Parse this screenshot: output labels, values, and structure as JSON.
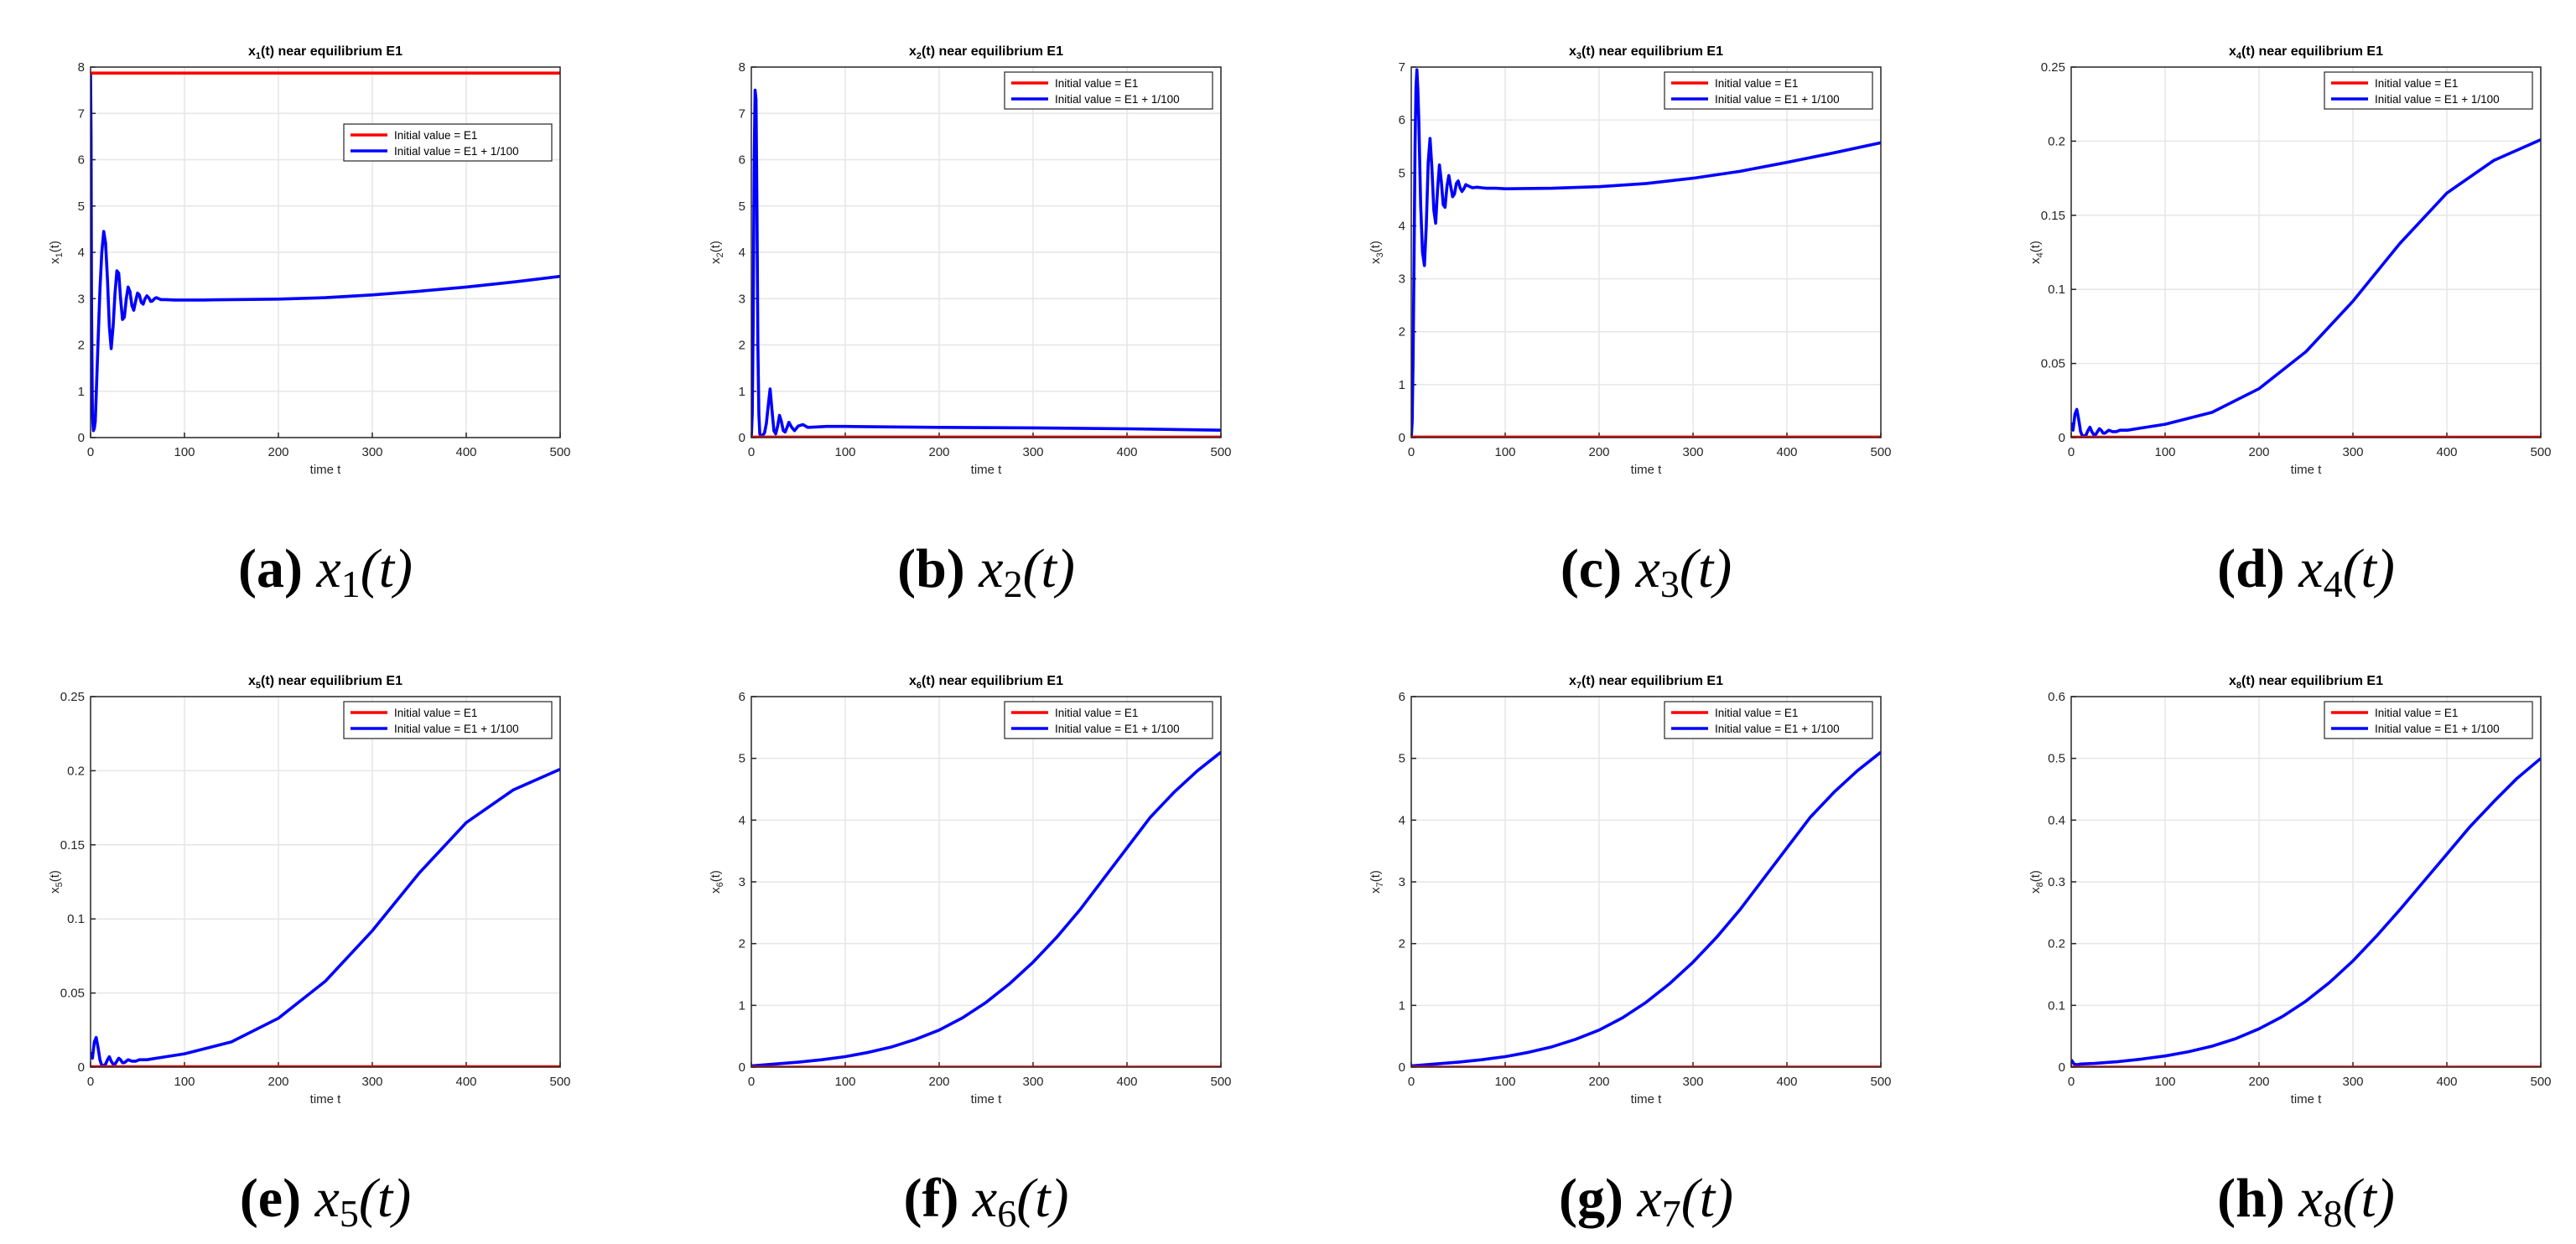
{
  "figure": {
    "panels": [
      {
        "label": "(a)",
        "var": "x",
        "sub": "1",
        "arg": "(t)"
      },
      {
        "label": "(b)",
        "var": "x",
        "sub": "2",
        "arg": "(t)"
      },
      {
        "label": "(c)",
        "var": "x",
        "sub": "3",
        "arg": "(t)"
      },
      {
        "label": "(d)",
        "var": "x",
        "sub": "4",
        "arg": "(t)"
      },
      {
        "label": "(e)",
        "var": "x",
        "sub": "5",
        "arg": "(t)"
      },
      {
        "label": "(f)",
        "var": "x",
        "sub": "6",
        "arg": "(t)"
      },
      {
        "label": "(g)",
        "var": "x",
        "sub": "7",
        "arg": "(t)"
      },
      {
        "label": "(h)",
        "var": "x",
        "sub": "8",
        "arg": "(t)"
      }
    ]
  },
  "colors": {
    "red": "#ff0000",
    "blue": "#0000ff",
    "grid": "#e6e6e6",
    "axis": "#262626"
  },
  "chart_data": [
    {
      "type": "line",
      "legend_position": "top-right",
      "grid": true,
      "title_pre": "x",
      "title_sub": "1",
      "title_post": "(t) near equilibrium E1",
      "ylabel_pre": "x",
      "ylabel_sub": "1",
      "ylabel_post": "(t)",
      "xlabel": "time t",
      "xlim": [
        0,
        500
      ],
      "ylim": [
        0,
        8
      ],
      "xticks": [
        "0",
        "100",
        "200",
        "300",
        "400",
        "500"
      ],
      "yticks": [
        "0",
        "1",
        "2",
        "3",
        "4",
        "5",
        "6",
        "7",
        "8"
      ],
      "series": [
        {
          "name": "Initial value = E1",
          "color": "#ff0000",
          "x": [
            0,
            500
          ],
          "y": [
            7.87,
            7.87
          ]
        },
        {
          "name": "Initial value = E1 + 1/100",
          "color": "#0000ff",
          "x": [
            0,
            0.5,
            1,
            2,
            3,
            4,
            5,
            6,
            8,
            10,
            12,
            14,
            16,
            18,
            20,
            22,
            24,
            26,
            28,
            30,
            32,
            34,
            36,
            38,
            40,
            42,
            44,
            46,
            48,
            50,
            52,
            54,
            56,
            58,
            60,
            62,
            64,
            66,
            68,
            70,
            75,
            80,
            90,
            100,
            120,
            150,
            200,
            250,
            300,
            350,
            400,
            450,
            500
          ],
          "y": [
            7.9,
            6.5,
            3.0,
            0.5,
            0.15,
            0.2,
            0.35,
            0.9,
            2.1,
            3.2,
            4.0,
            4.45,
            4.2,
            3.4,
            2.4,
            1.92,
            2.4,
            3.1,
            3.6,
            3.55,
            3.0,
            2.55,
            2.6,
            3.0,
            3.25,
            3.15,
            2.85,
            2.75,
            2.95,
            3.12,
            3.08,
            2.92,
            2.88,
            3.0,
            3.06,
            3.02,
            2.94,
            2.95,
            3.0,
            3.02,
            2.98,
            2.98,
            2.97,
            2.97,
            2.97,
            2.98,
            2.99,
            3.02,
            3.08,
            3.16,
            3.25,
            3.36,
            3.48
          ]
        }
      ]
    },
    {
      "type": "line",
      "legend_position": "top-right",
      "grid": true,
      "title_pre": "x",
      "title_sub": "2",
      "title_post": "(t) near equilibrium E1",
      "ylabel_pre": "x",
      "ylabel_sub": "2",
      "ylabel_post": "(t)",
      "xlabel": "time t",
      "xlim": [
        0,
        500
      ],
      "ylim": [
        0,
        8
      ],
      "xticks": [
        "0",
        "100",
        "200",
        "300",
        "400",
        "500"
      ],
      "yticks": [
        "0",
        "1",
        "2",
        "3",
        "4",
        "5",
        "6",
        "7",
        "8"
      ],
      "series": [
        {
          "name": "Initial value = E1",
          "color": "#ff0000",
          "x": [
            0,
            500
          ],
          "y": [
            0.01,
            0.01
          ]
        },
        {
          "name": "Initial value = E1 + 1/100",
          "color": "#0000ff",
          "x": [
            0,
            1,
            2,
            3,
            4,
            5,
            6,
            7,
            8,
            9,
            10,
            12,
            14,
            16,
            18,
            20,
            22,
            24,
            26,
            28,
            30,
            32,
            34,
            36,
            38,
            40,
            43,
            46,
            50,
            55,
            60,
            70,
            80,
            100,
            150,
            200,
            300,
            400,
            500
          ],
          "y": [
            0.02,
            0.5,
            2.5,
            6.0,
            7.5,
            7.3,
            5.0,
            2.0,
            0.5,
            0.08,
            0.03,
            0.05,
            0.1,
            0.3,
            0.7,
            1.05,
            0.6,
            0.15,
            0.08,
            0.25,
            0.48,
            0.35,
            0.15,
            0.12,
            0.22,
            0.33,
            0.22,
            0.15,
            0.25,
            0.28,
            0.22,
            0.23,
            0.24,
            0.24,
            0.23,
            0.22,
            0.21,
            0.19,
            0.16
          ]
        }
      ]
    },
    {
      "type": "line",
      "legend_position": "top-right",
      "grid": true,
      "title_pre": "x",
      "title_sub": "3",
      "title_post": "(t) near equilibrium E1",
      "ylabel_pre": "x",
      "ylabel_sub": "3",
      "ylabel_post": "(t)",
      "xlabel": "time t",
      "xlim": [
        0,
        500
      ],
      "ylim": [
        0,
        7
      ],
      "xticks": [
        "0",
        "100",
        "200",
        "300",
        "400",
        "500"
      ],
      "yticks": [
        "0",
        "1",
        "2",
        "3",
        "4",
        "5",
        "6",
        "7"
      ],
      "series": [
        {
          "name": "Initial value = E1",
          "color": "#ff0000",
          "x": [
            0,
            500
          ],
          "y": [
            0.01,
            0.01
          ]
        },
        {
          "name": "Initial value = E1 + 1/100",
          "color": "#0000ff",
          "x": [
            0,
            1,
            2,
            3,
            4,
            5,
            6,
            7,
            8,
            9,
            10,
            12,
            14,
            16,
            18,
            20,
            22,
            24,
            26,
            28,
            30,
            32,
            34,
            36,
            38,
            40,
            42,
            44,
            46,
            48,
            50,
            52,
            54,
            56,
            58,
            60,
            65,
            70,
            75,
            80,
            90,
            100,
            150,
            200,
            250,
            300,
            350,
            400,
            450,
            500
          ],
          "y": [
            0.0,
            0.3,
            1.5,
            3.5,
            5.5,
            6.6,
            6.95,
            6.6,
            6.0,
            5.2,
            4.4,
            3.5,
            3.25,
            4.0,
            5.2,
            5.65,
            5.1,
            4.3,
            4.05,
            4.7,
            5.15,
            4.85,
            4.4,
            4.35,
            4.75,
            4.95,
            4.75,
            4.55,
            4.6,
            4.8,
            4.85,
            4.72,
            4.65,
            4.7,
            4.78,
            4.76,
            4.72,
            4.73,
            4.72,
            4.71,
            4.71,
            4.7,
            4.71,
            4.74,
            4.8,
            4.9,
            5.03,
            5.2,
            5.38,
            5.57
          ]
        }
      ]
    },
    {
      "type": "line",
      "legend_position": "top-right",
      "grid": true,
      "title_pre": "x",
      "title_sub": "4",
      "title_post": "(t) near equilibrium E1",
      "ylabel_pre": "x",
      "ylabel_sub": "4",
      "ylabel_post": "(t)",
      "xlabel": "time t",
      "xlim": [
        0,
        500
      ],
      "ylim": [
        0,
        0.25
      ],
      "xticks": [
        "0",
        "100",
        "200",
        "300",
        "400",
        "500"
      ],
      "yticks": [
        "0",
        "0.05",
        "0.1",
        "0.15",
        "0.2",
        "0.25"
      ],
      "series": [
        {
          "name": "Initial value = E1",
          "color": "#ff0000",
          "x": [
            0,
            500
          ],
          "y": [
            0.0003,
            0.0003
          ]
        },
        {
          "name": "Initial value = E1 + 1/100",
          "color": "#0000ff",
          "x": [
            0,
            2,
            4,
            6,
            8,
            10,
            12,
            14,
            16,
            18,
            20,
            22,
            24,
            26,
            28,
            30,
            32,
            34,
            36,
            38,
            40,
            44,
            48,
            52,
            56,
            60,
            70,
            80,
            100,
            150,
            200,
            250,
            300,
            350,
            400,
            450,
            500
          ],
          "y": [
            0.01,
            0.005,
            0.016,
            0.019,
            0.012,
            0.004,
            0.001,
            0.001,
            0.002,
            0.005,
            0.007,
            0.004,
            0.002,
            0.002,
            0.004,
            0.006,
            0.005,
            0.003,
            0.003,
            0.004,
            0.005,
            0.004,
            0.004,
            0.005,
            0.005,
            0.005,
            0.006,
            0.007,
            0.009,
            0.017,
            0.033,
            0.058,
            0.092,
            0.131,
            0.165,
            0.187,
            0.201
          ]
        }
      ]
    },
    {
      "type": "line",
      "legend_position": "top-right",
      "grid": true,
      "title_pre": "x",
      "title_sub": "5",
      "title_post": "(t) near equilibrium E1",
      "ylabel_pre": "x",
      "ylabel_sub": "5",
      "ylabel_post": "(t)",
      "xlabel": "time t",
      "xlim": [
        0,
        500
      ],
      "ylim": [
        0,
        0.25
      ],
      "xticks": [
        "0",
        "100",
        "200",
        "300",
        "400",
        "500"
      ],
      "yticks": [
        "0",
        "0.05",
        "0.1",
        "0.15",
        "0.2",
        "0.25"
      ],
      "series": [
        {
          "name": "Initial value = E1",
          "color": "#ff0000",
          "x": [
            0,
            500
          ],
          "y": [
            0.0003,
            0.0003
          ]
        },
        {
          "name": "Initial value = E1 + 1/100",
          "color": "#0000ff",
          "x": [
            0,
            2,
            4,
            6,
            8,
            10,
            12,
            14,
            16,
            18,
            20,
            22,
            24,
            26,
            28,
            30,
            32,
            34,
            36,
            38,
            40,
            44,
            48,
            52,
            56,
            60,
            70,
            80,
            100,
            150,
            200,
            250,
            300,
            350,
            400,
            450,
            500
          ],
          "y": [
            0.01,
            0.006,
            0.017,
            0.02,
            0.013,
            0.005,
            0.001,
            0.001,
            0.002,
            0.005,
            0.007,
            0.004,
            0.002,
            0.002,
            0.004,
            0.006,
            0.005,
            0.003,
            0.003,
            0.004,
            0.005,
            0.004,
            0.004,
            0.005,
            0.005,
            0.005,
            0.006,
            0.007,
            0.009,
            0.017,
            0.033,
            0.058,
            0.092,
            0.131,
            0.165,
            0.187,
            0.201
          ]
        }
      ]
    },
    {
      "type": "line",
      "legend_position": "top-right",
      "grid": true,
      "title_pre": "x",
      "title_sub": "6",
      "title_post": "(t) near equilibrium E1",
      "ylabel_pre": "x",
      "ylabel_sub": "6",
      "ylabel_post": "(t)",
      "xlabel": "time t",
      "xlim": [
        0,
        500
      ],
      "ylim": [
        0,
        6
      ],
      "xticks": [
        "0",
        "100",
        "200",
        "300",
        "400",
        "500"
      ],
      "yticks": [
        "0",
        "1",
        "2",
        "3",
        "4",
        "5",
        "6"
      ],
      "series": [
        {
          "name": "Initial value = E1",
          "color": "#ff0000",
          "x": [
            0,
            500
          ],
          "y": [
            0.0,
            0.0
          ]
        },
        {
          "name": "Initial value = E1 + 1/100",
          "color": "#0000ff",
          "x": [
            0,
            25,
            50,
            75,
            100,
            125,
            150,
            175,
            200,
            225,
            250,
            275,
            300,
            325,
            350,
            375,
            400,
            425,
            450,
            475,
            500
          ],
          "y": [
            0.02,
            0.05,
            0.08,
            0.12,
            0.17,
            0.24,
            0.33,
            0.45,
            0.6,
            0.8,
            1.05,
            1.35,
            1.7,
            2.1,
            2.55,
            3.05,
            3.55,
            4.05,
            4.45,
            4.8,
            5.1
          ]
        }
      ]
    },
    {
      "type": "line",
      "legend_position": "top-right",
      "grid": true,
      "title_pre": "x",
      "title_sub": "7",
      "title_post": "(t) near equilibrium E1",
      "ylabel_pre": "x",
      "ylabel_sub": "7",
      "ylabel_post": "(t)",
      "xlabel": "time t",
      "xlim": [
        0,
        500
      ],
      "ylim": [
        0,
        6
      ],
      "xticks": [
        "0",
        "100",
        "200",
        "300",
        "400",
        "500"
      ],
      "yticks": [
        "0",
        "1",
        "2",
        "3",
        "4",
        "5",
        "6"
      ],
      "series": [
        {
          "name": "Initial value = E1",
          "color": "#ff0000",
          "x": [
            0,
            500
          ],
          "y": [
            0.0,
            0.0
          ]
        },
        {
          "name": "Initial value = E1 + 1/100",
          "color": "#0000ff",
          "x": [
            0,
            25,
            50,
            75,
            100,
            125,
            150,
            175,
            200,
            225,
            250,
            275,
            300,
            325,
            350,
            375,
            400,
            425,
            450,
            475,
            500
          ],
          "y": [
            0.02,
            0.05,
            0.08,
            0.12,
            0.17,
            0.24,
            0.33,
            0.45,
            0.6,
            0.8,
            1.05,
            1.35,
            1.7,
            2.1,
            2.55,
            3.05,
            3.55,
            4.05,
            4.45,
            4.8,
            5.1
          ]
        }
      ]
    },
    {
      "type": "line",
      "legend_position": "top-right",
      "grid": true,
      "title_pre": "x",
      "title_sub": "8",
      "title_post": "(t) near equilibrium E1",
      "ylabel_pre": "x",
      "ylabel_sub": "8",
      "ylabel_post": "(t)",
      "xlabel": "time t",
      "xlim": [
        0,
        500
      ],
      "ylim": [
        0,
        0.6
      ],
      "xticks": [
        "0",
        "100",
        "200",
        "300",
        "400",
        "500"
      ],
      "yticks": [
        "0",
        "0.1",
        "0.2",
        "0.3",
        "0.4",
        "0.5",
        "0.6"
      ],
      "series": [
        {
          "name": "Initial value = E1",
          "color": "#ff0000",
          "x": [
            0,
            500
          ],
          "y": [
            0.0,
            0.0
          ]
        },
        {
          "name": "Initial value = E1 + 1/100",
          "color": "#0000ff",
          "x": [
            0,
            3,
            6,
            10,
            25,
            50,
            75,
            100,
            125,
            150,
            175,
            200,
            225,
            250,
            275,
            300,
            325,
            350,
            375,
            400,
            425,
            450,
            475,
            500
          ],
          "y": [
            0.012,
            0.005,
            0.004,
            0.005,
            0.006,
            0.009,
            0.013,
            0.018,
            0.025,
            0.034,
            0.046,
            0.062,
            0.082,
            0.107,
            0.137,
            0.172,
            0.212,
            0.255,
            0.3,
            0.345,
            0.39,
            0.43,
            0.468,
            0.5
          ]
        }
      ]
    }
  ]
}
